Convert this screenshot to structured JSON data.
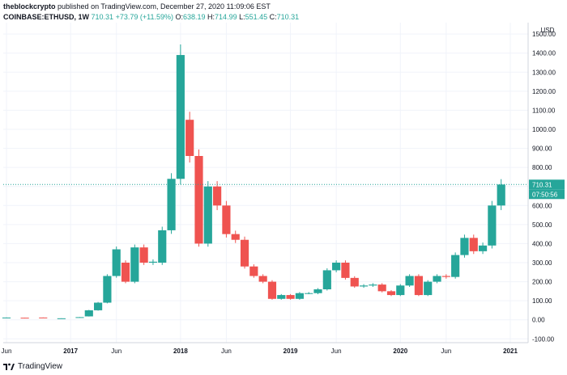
{
  "header": {
    "publisher": "theblockcrypto",
    "published_text": "published on TradingView.com, December 27, 2020 11:09:06 EST",
    "symbol": "COINBASE:ETHUSD, 1W",
    "last": "710.31",
    "change": "+73.79 (+11.59%)",
    "ohlc": {
      "o_label": "O:",
      "o": "638.19",
      "h_label": "H:",
      "h": "714.99",
      "l_label": "L:",
      "l": "551.45",
      "c_label": "C:",
      "c": "710.31"
    }
  },
  "footer": {
    "brand": "TradingView"
  },
  "colors": {
    "up": "#26a69a",
    "down": "#ef5350",
    "grid": "#f0f3fa",
    "last_line": "#26a69a"
  },
  "chart_data": {
    "type": "candlestick",
    "currency": "USD",
    "price_label": "710.31",
    "countdown_label": "07:50:56",
    "ylim": [
      -120,
      1560
    ],
    "y_ticks": [
      "1500.00",
      "1400.00",
      "1300.00",
      "1200.00",
      "1100.00",
      "1000.00",
      "900.00",
      "800.00",
      "700.00",
      "600.00",
      "500.00",
      "400.00",
      "300.00",
      "200.00",
      "100.00",
      "0.00",
      "-100.00"
    ],
    "x_ticks": [
      "Jun",
      "2017",
      "Jun",
      "2018",
      "Jun",
      "2019",
      "Jun",
      "2020",
      "Jun",
      "2021"
    ],
    "x_range": [
      "2016-06",
      "2021-01"
    ],
    "series": [
      {
        "date": "2016-06",
        "open": 12,
        "close": 12
      },
      {
        "date": "2016-08",
        "open": 11,
        "close": 10
      },
      {
        "date": "2016-10",
        "open": 12,
        "close": 11
      },
      {
        "date": "2016-12",
        "open": 8,
        "close": 8
      },
      {
        "date": "2017-02",
        "open": 12,
        "close": 14
      },
      {
        "date": "2017-03",
        "open": 18,
        "close": 50
      },
      {
        "date": "2017-04",
        "open": 50,
        "close": 90
      },
      {
        "date": "2017-05",
        "open": 90,
        "close": 230
      },
      {
        "date": "2017-06",
        "open": 230,
        "close": 370
      },
      {
        "date": "2017-07",
        "open": 300,
        "close": 200
      },
      {
        "date": "2017-08",
        "open": 200,
        "close": 380
      },
      {
        "date": "2017-09",
        "open": 380,
        "close": 300
      },
      {
        "date": "2017-10",
        "open": 300,
        "close": 305
      },
      {
        "date": "2017-11",
        "open": 300,
        "close": 470
      },
      {
        "date": "2017-12",
        "open": 470,
        "close": 740
      },
      {
        "date": "2018-01",
        "open": 740,
        "close": 1390
      },
      {
        "date": "2018-02",
        "open": 1050,
        "close": 860
      },
      {
        "date": "2018-03",
        "open": 860,
        "close": 400
      },
      {
        "date": "2018-04",
        "open": 400,
        "close": 700
      },
      {
        "date": "2018-05",
        "open": 700,
        "close": 600
      },
      {
        "date": "2018-06",
        "open": 600,
        "close": 450
      },
      {
        "date": "2018-07",
        "open": 450,
        "close": 420
      },
      {
        "date": "2018-08",
        "open": 420,
        "close": 280
      },
      {
        "date": "2018-09",
        "open": 280,
        "close": 230
      },
      {
        "date": "2018-10",
        "open": 230,
        "close": 200
      },
      {
        "date": "2018-11",
        "open": 200,
        "close": 110
      },
      {
        "date": "2018-12",
        "open": 110,
        "close": 130
      },
      {
        "date": "2019-01",
        "open": 130,
        "close": 110
      },
      {
        "date": "2019-02",
        "open": 110,
        "close": 140
      },
      {
        "date": "2019-03",
        "open": 140,
        "close": 140
      },
      {
        "date": "2019-04",
        "open": 140,
        "close": 160
      },
      {
        "date": "2019-05",
        "open": 160,
        "close": 260
      },
      {
        "date": "2019-06",
        "open": 260,
        "close": 300
      },
      {
        "date": "2019-07",
        "open": 300,
        "close": 220
      },
      {
        "date": "2019-08",
        "open": 220,
        "close": 175
      },
      {
        "date": "2019-09",
        "open": 175,
        "close": 180
      },
      {
        "date": "2019-10",
        "open": 180,
        "close": 185
      },
      {
        "date": "2019-11",
        "open": 185,
        "close": 150
      },
      {
        "date": "2019-12",
        "open": 150,
        "close": 130
      },
      {
        "date": "2020-01",
        "open": 130,
        "close": 180
      },
      {
        "date": "2020-02",
        "open": 180,
        "close": 230
      },
      {
        "date": "2020-03",
        "open": 230,
        "close": 130
      },
      {
        "date": "2020-04",
        "open": 130,
        "close": 200
      },
      {
        "date": "2020-05",
        "open": 200,
        "close": 230
      },
      {
        "date": "2020-06",
        "open": 230,
        "close": 225
      },
      {
        "date": "2020-07",
        "open": 225,
        "close": 340
      },
      {
        "date": "2020-08",
        "open": 340,
        "close": 430
      },
      {
        "date": "2020-09",
        "open": 430,
        "close": 360
      },
      {
        "date": "2020-10",
        "open": 360,
        "close": 390
      },
      {
        "date": "2020-11",
        "open": 390,
        "close": 600
      },
      {
        "date": "2020-12",
        "open": 600,
        "close": 710
      }
    ]
  }
}
